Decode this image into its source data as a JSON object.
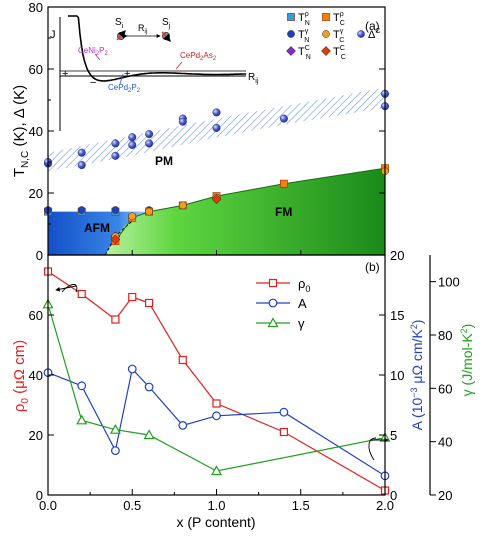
{
  "chart_data": [
    {
      "panel": "(a)",
      "type": "scatter",
      "xlabel": "",
      "ylabel": "T",
      "ylabel_sub": "N,C",
      "ylabel_rest": " (K), Δ (K)",
      "xlim": [
        0,
        2.0
      ],
      "ylim": [
        0,
        80
      ],
      "yticks": [
        "0",
        "20",
        "40",
        "60",
        "80"
      ],
      "regions": {
        "afm": "AFM",
        "fm": "FM",
        "pm": "PM"
      },
      "colors": {
        "afm": "#1a5fd0",
        "fm": "#22a61a",
        "band": "#5b8fd6"
      },
      "legend": [
        {
          "base": "T",
          "sub": "N",
          "sup": "ρ",
          "marker": "square",
          "color": "#2aa0e0"
        },
        {
          "base": "T",
          "sub": "N",
          "sup": "γ",
          "marker": "circle",
          "color": "#2040c0"
        },
        {
          "base": "T",
          "sub": "N",
          "sup": "C",
          "marker": "diamond",
          "color": "#7a30c0"
        },
        {
          "base": "T",
          "sub": "C",
          "sup": "ρ",
          "marker": "square",
          "color": "#f08010"
        },
        {
          "base": "T",
          "sub": "C",
          "sup": "γ",
          "marker": "circle",
          "color": "#f0a020"
        },
        {
          "base": "T",
          "sub": "C",
          "sup": "C",
          "marker": "diamond",
          "color": "#d04010"
        },
        {
          "base": "Δ",
          "sub": "",
          "sup": "ρ",
          "marker": "ball",
          "color": "#5060d0"
        },
        {
          "base": "Δ",
          "sub": "",
          "sup": "C",
          "marker": "ball",
          "color": "#2040b0"
        }
      ],
      "series": [
        {
          "name": "T_N^ρ",
          "x": [
            0,
            0.2,
            0.4
          ],
          "y": [
            14,
            14,
            14
          ]
        },
        {
          "name": "T_N^γ",
          "x": [
            0,
            0.2,
            0.4,
            0.6
          ],
          "y": [
            14.5,
            14.5,
            14.5,
            14.5
          ]
        },
        {
          "name": "T_N^C",
          "x": [
            0.4
          ],
          "y": [
            6
          ]
        },
        {
          "name": "T_C^ρ",
          "x": [
            0.4,
            0.5,
            0.6,
            0.8,
            1.0,
            1.4,
            2.0
          ],
          "y": [
            4.5,
            12,
            14,
            16,
            19,
            23,
            28
          ]
        },
        {
          "name": "T_C^γ",
          "x": [
            0.4,
            0.5,
            0.6,
            0.8,
            1.0,
            2.0
          ],
          "y": [
            6,
            12.5,
            14,
            16,
            18.5,
            27
          ]
        },
        {
          "name": "T_C^C",
          "x": [
            0.4,
            1.0
          ],
          "y": [
            5,
            18
          ]
        },
        {
          "name": "Δ^ρ",
          "x": [
            0,
            0.2,
            0.4,
            0.5,
            0.6,
            0.8,
            1.0,
            1.4,
            2.0
          ],
          "y": [
            29.5,
            33,
            32,
            35.5,
            36,
            44,
            46,
            44,
            52
          ]
        },
        {
          "name": "Δ^C",
          "x": [
            0,
            0.2,
            0.4,
            0.5,
            0.6,
            0.8,
            1.0,
            2.0
          ],
          "y": [
            30,
            29,
            36,
            38,
            39,
            43,
            41,
            48
          ]
        }
      ],
      "inset": {
        "ylabel": "J",
        "xlabel": "R",
        "xlabel_sub": "ij",
        "spin_left": "S",
        "spin_left_sub": "i",
        "spin_right": "S",
        "spin_right_sub": "j",
        "distance": "R",
        "distance_sub": "ij",
        "plus1": "+",
        "minus": "−",
        "plus2": "+",
        "compounds": [
          {
            "parts": [
              "CeNi",
              "2",
              "P",
              "2"
            ],
            "color": "#b030c0"
          },
          {
            "parts": [
              "CePd",
              "2",
              "P",
              "2"
            ],
            "color": "#2060d0"
          },
          {
            "parts": [
              "CePd",
              "2",
              "As",
              "2"
            ],
            "color": "#d02020"
          }
        ]
      }
    },
    {
      "panel": "(b)",
      "type": "line",
      "xlabel": "x (P content)",
      "xlim": [
        0,
        2.0
      ],
      "xticks": [
        "0.0",
        "0.5",
        "1.0",
        "1.5",
        "2.0"
      ],
      "y_left": {
        "label_sym": "ρ",
        "label_sub": "0",
        "label_rest": " (μΩ cm)",
        "lim": [
          0,
          80
        ],
        "ticks": [
          "0",
          "20",
          "40",
          "60"
        ],
        "color": "#e02020"
      },
      "y_right1": {
        "label_main": "A (10",
        "label_sup": "−3",
        "label_rest": " μΩ cm/K",
        "label_sup2": "2",
        "label_end": ")",
        "lim": [
          0,
          20
        ],
        "ticks": [
          "0",
          "5",
          "10",
          "15",
          "20"
        ],
        "color": "#2040c0"
      },
      "y_right2": {
        "label_main": "γ (J/mol-K",
        "label_sup": "2",
        "label_end": ")",
        "lim": [
          20,
          110
        ],
        "ticks": [
          "20",
          "40",
          "60",
          "80",
          "100"
        ],
        "color": "#22a020"
      },
      "legend": [
        {
          "sym": "ρ",
          "sub": "0",
          "color": "#e02020",
          "marker": "square"
        },
        {
          "sym": "A",
          "sub": "",
          "color": "#2040c0",
          "marker": "circle"
        },
        {
          "sym": "γ",
          "sub": "",
          "color": "#22a020",
          "marker": "triangle"
        }
      ],
      "series": [
        {
          "name": "ρ0",
          "axis": "left",
          "x": [
            0,
            0.2,
            0.4,
            0.5,
            0.6,
            0.8,
            1.0,
            1.4,
            2.0
          ],
          "values": [
            74.5,
            67,
            58.5,
            66,
            64,
            45,
            30.5,
            21,
            1.5
          ]
        },
        {
          "name": "A",
          "axis": "right1",
          "x": [
            0,
            0.2,
            0.4,
            0.5,
            0.6,
            0.8,
            1.0,
            1.4,
            2.0
          ],
          "values": [
            10.2,
            9.1,
            3.7,
            10.5,
            9,
            5.8,
            6.6,
            6.9,
            1.6
          ]
        },
        {
          "name": "γ",
          "axis": "right2",
          "x": [
            0,
            0.2,
            0.4,
            0.6,
            1.0,
            2.0
          ],
          "values": [
            91.5,
            48,
            44.5,
            42.5,
            29,
            41.5
          ]
        }
      ]
    }
  ]
}
